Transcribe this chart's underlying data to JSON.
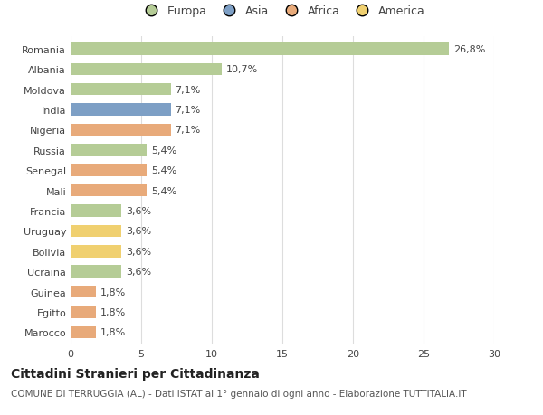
{
  "countries": [
    "Romania",
    "Albania",
    "Moldova",
    "India",
    "Nigeria",
    "Russia",
    "Senegal",
    "Mali",
    "Francia",
    "Uruguay",
    "Bolivia",
    "Ucraina",
    "Guinea",
    "Egitto",
    "Marocco"
  ],
  "values": [
    26.8,
    10.7,
    7.1,
    7.1,
    7.1,
    5.4,
    5.4,
    5.4,
    3.6,
    3.6,
    3.6,
    3.6,
    1.8,
    1.8,
    1.8
  ],
  "labels": [
    "26,8%",
    "10,7%",
    "7,1%",
    "7,1%",
    "7,1%",
    "5,4%",
    "5,4%",
    "5,4%",
    "3,6%",
    "3,6%",
    "3,6%",
    "3,6%",
    "1,8%",
    "1,8%",
    "1,8%"
  ],
  "colors": [
    "#b5cc96",
    "#b5cc96",
    "#b5cc96",
    "#7d9fc5",
    "#e8aa7a",
    "#b5cc96",
    "#e8aa7a",
    "#e8aa7a",
    "#b5cc96",
    "#f0d070",
    "#f0d070",
    "#b5cc96",
    "#e8aa7a",
    "#e8aa7a",
    "#e8aa7a"
  ],
  "legend_labels": [
    "Europa",
    "Asia",
    "Africa",
    "America"
  ],
  "legend_colors": [
    "#b5cc96",
    "#7d9fc5",
    "#e8aa7a",
    "#f0d070"
  ],
  "title": "Cittadini Stranieri per Cittadinanza",
  "subtitle": "COMUNE DI TERRUGGIA (AL) - Dati ISTAT al 1° gennaio di ogni anno - Elaborazione TUTTITALIA.IT",
  "xlim": [
    0,
    30
  ],
  "xticks": [
    0,
    5,
    10,
    15,
    20,
    25,
    30
  ],
  "bg_color": "#ffffff",
  "grid_color": "#dddddd",
  "bar_height": 0.6,
  "title_fontsize": 10,
  "subtitle_fontsize": 7.5,
  "label_fontsize": 8,
  "tick_fontsize": 8,
  "legend_fontsize": 9
}
